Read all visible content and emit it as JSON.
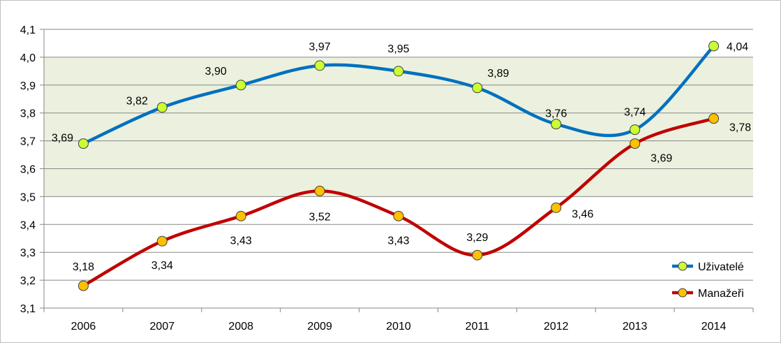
{
  "chart_data": {
    "type": "line",
    "title": "",
    "xlabel": "",
    "ylabel": "",
    "categories": [
      "2006",
      "2007",
      "2008",
      "2009",
      "2010",
      "2011",
      "2012",
      "2013",
      "2014"
    ],
    "ylim": [
      3.1,
      4.1
    ],
    "yticks": [
      "3,1",
      "3,2",
      "3,3",
      "3,4",
      "3,5",
      "3,6",
      "3,7",
      "3,8",
      "3,9",
      "4,0",
      "4,1"
    ],
    "grid": true,
    "highlight_band": {
      "from": 3.5,
      "to": 4.0,
      "color": "#ebf1de"
    },
    "legend_position": "bottom-right",
    "series": [
      {
        "name": "Uživatelé",
        "color": "#0070c0",
        "marker": "#ccff33",
        "values": [
          3.69,
          3.82,
          3.9,
          3.97,
          3.95,
          3.89,
          3.76,
          3.74,
          4.04
        ],
        "labels": [
          "3,69",
          "3,82",
          "3,90",
          "3,97",
          "3,95",
          "3,89",
          "3,76",
          "3,74",
          "4,04"
        ]
      },
      {
        "name": "Manažeři",
        "color": "#c00000",
        "marker": "#ffc000",
        "values": [
          3.18,
          3.34,
          3.43,
          3.52,
          3.43,
          3.29,
          3.46,
          3.69,
          3.78
        ],
        "labels": [
          "3,18",
          "3,34",
          "3,43",
          "3,52",
          "3,43",
          "3,29",
          "3,46",
          "3,69",
          "3,78"
        ]
      }
    ]
  }
}
